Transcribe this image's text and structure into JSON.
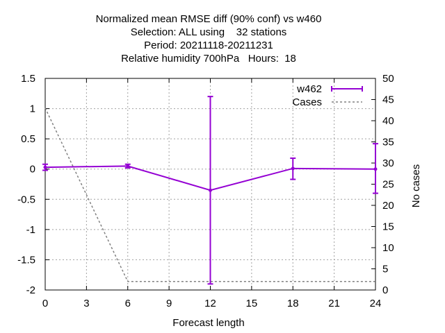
{
  "chart_data": {
    "type": "line",
    "title_lines": [
      "Normalized mean RMSE diff (90% conf) vs w460",
      "Selection: ALL using    32 stations",
      "Period: 20211118-20211231",
      "Relative humidity 700hPa   Hours:  18"
    ],
    "xlabel": "Forecast length",
    "ylabel": "",
    "y2label": "No cases",
    "xlim": [
      0,
      24
    ],
    "ylim": [
      -2,
      1.5
    ],
    "y2lim": [
      0,
      50
    ],
    "xticks": [
      "0",
      "3",
      "6",
      "9",
      "12",
      "15",
      "18",
      "21",
      "24"
    ],
    "yticks": [
      "1.5",
      "1",
      "0.5",
      "0",
      "-0.5",
      "-1",
      "-1.5",
      "-2"
    ],
    "y2ticks": [
      "50",
      "45",
      "40",
      "35",
      "30",
      "25",
      "20",
      "15",
      "10",
      "5",
      "0"
    ],
    "grid": true,
    "legend_position": "top-right",
    "series": [
      {
        "name": "w462",
        "color": "#9400d3",
        "x": [
          0,
          6,
          12,
          18,
          24
        ],
        "y": [
          0.03,
          0.05,
          -0.35,
          0.01,
          0.0
        ],
        "err_low": [
          -0.02,
          0.02,
          -1.9,
          -0.17,
          -0.4
        ],
        "err_high": [
          0.08,
          0.08,
          1.2,
          0.18,
          0.42
        ]
      },
      {
        "name": "Cases",
        "color": "#808080",
        "axis": "y2",
        "x": [
          0,
          6,
          12,
          18,
          24
        ],
        "y": [
          43,
          2,
          2,
          2,
          2
        ]
      }
    ]
  }
}
